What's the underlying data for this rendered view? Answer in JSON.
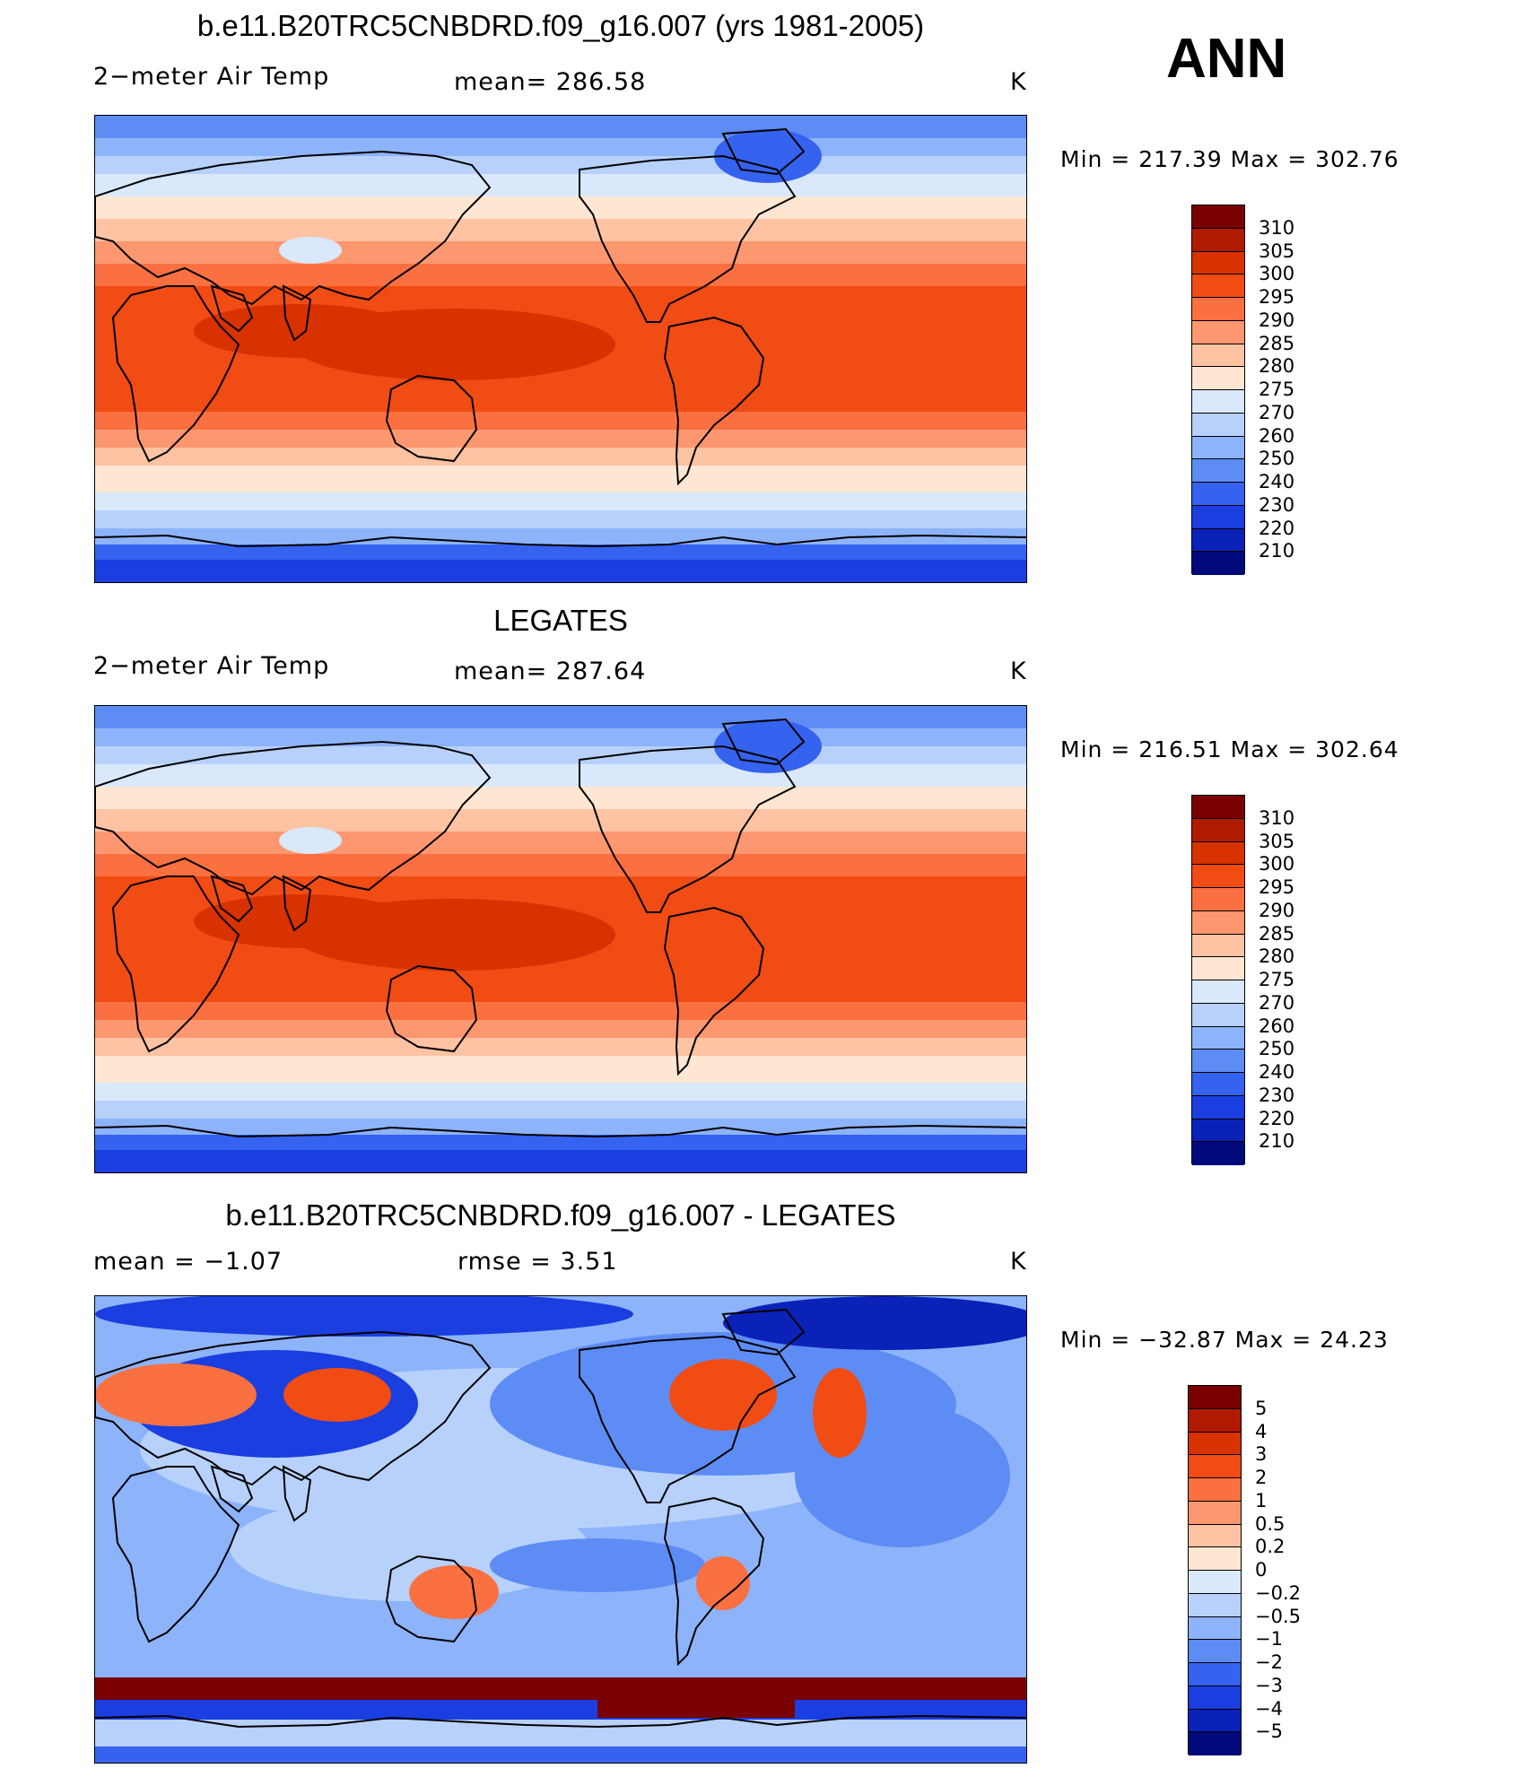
{
  "season": "ANN",
  "panels": [
    {
      "title": "b.e11.B20TRC5CNBDRD.f09_g16.007 (yrs 1981-2005)",
      "left_label": "2−meter Air Temp",
      "center_label": "mean=  286.58",
      "units": "K",
      "minmax": "Min  =  217.39  Max  =  302.76",
      "kind": "abs",
      "map_region": "global"
    },
    {
      "title": "LEGATES",
      "left_label": "2−meter Air Temp",
      "center_label": "mean=  287.64",
      "units": "K",
      "minmax": "Min  =  216.51  Max  =  302.64",
      "kind": "abs",
      "map_region": "global"
    },
    {
      "title": "b.e11.B20TRC5CNBDRD.f09_g16.007 - LEGATES",
      "left_label": "mean  =    −1.07",
      "center_label": "rmse  =     3.51",
      "units": "K",
      "minmax": "Min  =  −32.87  Max  =    24.23",
      "kind": "diff",
      "map_region": "global"
    }
  ],
  "legend_abs": {
    "labels": [
      "310",
      "305",
      "300",
      "295",
      "290",
      "285",
      "280",
      "275",
      "270",
      "260",
      "250",
      "240",
      "230",
      "220",
      "210"
    ],
    "colors": [
      "#7a0000",
      "#b01a00",
      "#d83200",
      "#f04c14",
      "#fb7040",
      "#fc9770",
      "#fdc3a3",
      "#fee6d2",
      "#d9e8fb",
      "#b7d1fb",
      "#8db3fa",
      "#5d8cf5",
      "#3562ee",
      "#1a3ee0",
      "#0a22b8",
      "#000a7a"
    ]
  },
  "legend_diff": {
    "labels": [
      "5",
      "4",
      "3",
      "2",
      "1",
      "0.5",
      "0.2",
      "0",
      "−0.2",
      "−0.5",
      "−1",
      "−2",
      "−3",
      "−4",
      "−5"
    ],
    "colors": [
      "#7a0000",
      "#b01a00",
      "#d83200",
      "#f04c14",
      "#fb7040",
      "#fc9770",
      "#fdc3a3",
      "#fee6d2",
      "#d9e8fb",
      "#b7d1fb",
      "#8db3fa",
      "#5d8cf5",
      "#3562ee",
      "#1a3ee0",
      "#0a22b8",
      "#000a7a"
    ]
  }
}
